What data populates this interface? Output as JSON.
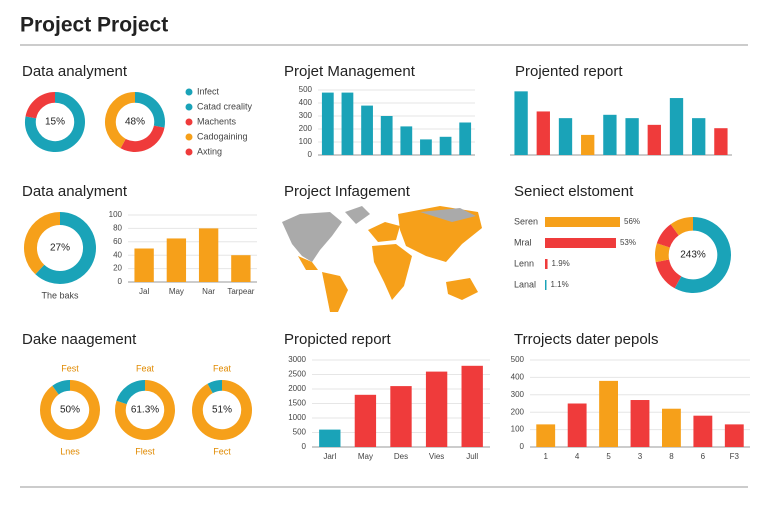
{
  "title": "Project Project",
  "chart_data": [
    {
      "type": "donut",
      "title": "Data analyment",
      "donuts": [
        {
          "center": "15%",
          "values": [
            78,
            22
          ],
          "colors": [
            "#1aa3b8",
            "#ef3b3b"
          ]
        },
        {
          "center": "48%",
          "values": [
            28,
            30,
            42
          ],
          "colors": [
            "#1aa3b8",
            "#ef3b3b",
            "#f6a01a"
          ]
        }
      ],
      "legend": [
        {
          "name": "Infect",
          "color": "#1aa3b8"
        },
        {
          "name": "Catad creality",
          "color": "#1aa3b8"
        },
        {
          "name": "Machents",
          "color": "#ef3b3b"
        },
        {
          "name": "Cadogaining",
          "color": "#f6a01a"
        },
        {
          "name": "Axting",
          "color": "#ef3b3b"
        }
      ]
    },
    {
      "type": "bar",
      "title": "Projet Management",
      "values": [
        480,
        480,
        380,
        300,
        220,
        120,
        140,
        250
      ],
      "color": "#1aa3b8",
      "ylim": [
        0,
        500
      ],
      "yticks": [
        0,
        100,
        200,
        300,
        400,
        500
      ]
    },
    {
      "type": "bar",
      "title": "Projented report",
      "values": [
        95,
        65,
        55,
        30,
        60,
        55,
        45,
        85,
        55,
        40
      ],
      "colors": [
        "#1aa3b8",
        "#ef3b3b",
        "#1aa3b8",
        "#f6a01a",
        "#1aa3b8",
        "#1aa3b8",
        "#ef3b3b",
        "#1aa3b8",
        "#1aa3b8",
        "#ef3b3b"
      ],
      "ylim": [
        0,
        100
      ]
    },
    {
      "type": "donut",
      "title": "Data analyment",
      "donuts": [
        {
          "center": "27%",
          "values": [
            62,
            38
          ],
          "colors": [
            "#1aa3b8",
            "#f6a01a"
          ],
          "bottom": "The baks"
        }
      ]
    },
    {
      "type": "bar",
      "categories": [
        "Jal",
        "May",
        "Nar",
        "Tarpear"
      ],
      "values": [
        50,
        65,
        80,
        40
      ],
      "color": "#f6a01a",
      "ylim": [
        0,
        100
      ],
      "yticks": [
        0,
        20,
        40,
        60,
        80,
        100
      ]
    },
    {
      "type": "map",
      "title": "Project Infagement"
    },
    {
      "type": "hbar",
      "title": "Seniect elstoment",
      "categories": [
        "Seren",
        "Mral",
        "Lenn",
        "Lanal"
      ],
      "values": [
        56,
        53,
        1.9,
        1.1
      ],
      "value_labels": [
        "56%",
        "53%",
        "1.9%",
        "1.1%"
      ],
      "colors": [
        "#f6a01a",
        "#ef3b3b",
        "#ef3b3b",
        "#1aa3b8"
      ]
    },
    {
      "type": "donut",
      "donuts": [
        {
          "center": "243%",
          "values": [
            58,
            14,
            8,
            10,
            10
          ],
          "colors": [
            "#1aa3b8",
            "#ef3b3b",
            "#f6a01a",
            "#ef3b3b",
            "#f6a01a"
          ]
        }
      ]
    },
    {
      "type": "donut",
      "title": "Dake naagement",
      "donuts": [
        {
          "top": "Fest",
          "center": "50%",
          "bottom": "Lnes",
          "values": [
            90,
            10
          ],
          "colors": [
            "#f6a01a",
            "#1aa3b8"
          ]
        },
        {
          "top": "Feat",
          "center": "61.3%",
          "bottom": "Flest",
          "values": [
            80,
            20
          ],
          "colors": [
            "#f6a01a",
            "#1aa3b8"
          ]
        },
        {
          "top": "Feat",
          "center": "51%",
          "bottom": "Fect",
          "values": [
            92,
            8
          ],
          "colors": [
            "#f6a01a",
            "#1aa3b8"
          ]
        }
      ]
    },
    {
      "type": "bar",
      "title": "Propicted report",
      "categories": [
        "Jarl",
        "May",
        "Des",
        "Vies",
        "Jull"
      ],
      "values": [
        600,
        1800,
        2100,
        2600,
        2800
      ],
      "colors": [
        "#1aa3b8",
        "#ef3b3b",
        "#ef3b3b",
        "#ef3b3b",
        "#ef3b3b"
      ],
      "ylim": [
        0,
        3000
      ],
      "yticks": [
        0,
        500,
        1000,
        1500,
        2000,
        2500,
        3000
      ]
    },
    {
      "type": "bar",
      "title": "Trrojects dater pepols",
      "categories": [
        "1",
        "4",
        "5",
        "3",
        "8",
        "6",
        "F3"
      ],
      "values": [
        130,
        250,
        380,
        270,
        220,
        180,
        130
      ],
      "colors": [
        "#f6a01a",
        "#ef3b3b",
        "#f6a01a",
        "#ef3b3b",
        "#f6a01a",
        "#ef3b3b",
        "#ef3b3b"
      ],
      "ylim": [
        0,
        500
      ],
      "yticks": [
        0,
        100,
        200,
        300,
        400,
        500
      ]
    }
  ]
}
